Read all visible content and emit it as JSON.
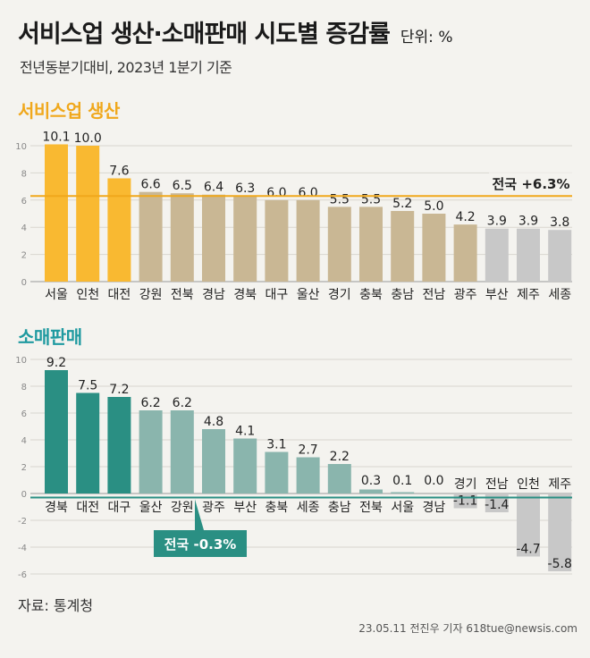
{
  "header": {
    "title": "서비스업 생산·소매판매 시도별 증감률",
    "unit": "단위: %",
    "subtitle": "전년동분기대비, 2023년 1분기 기준"
  },
  "footer": {
    "source": "자료: 통계청",
    "credit": "23.05.11 전진우 기자 618tue@newsis.com"
  },
  "colors": {
    "highlight_yellow": "#f9b931",
    "tan": "#c9b794",
    "gray": "#c8c8c8",
    "dark_teal": "#2a8f83",
    "light_teal": "#8ab5ad",
    "avg_yellow": "#f0a81c",
    "avg_teal": "#2a8f83"
  },
  "chart_data": [
    {
      "type": "bar",
      "title": "서비스업 생산",
      "categories": [
        "서울",
        "인천",
        "대전",
        "강원",
        "전북",
        "경남",
        "경북",
        "대구",
        "울산",
        "경기",
        "충북",
        "충남",
        "전남",
        "광주",
        "부산",
        "제주",
        "세종"
      ],
      "values": [
        10.1,
        10.0,
        7.6,
        6.6,
        6.5,
        6.4,
        6.3,
        6.0,
        6.0,
        5.5,
        5.5,
        5.2,
        5.0,
        4.2,
        3.9,
        3.9,
        3.8
      ],
      "value_labels": [
        "10.1",
        "10.0",
        "7.6",
        "6.6",
        "6.5",
        "6.4",
        "6.3",
        "6.0",
        "6.0",
        "5.5",
        "5.5",
        "5.2",
        "5.0",
        "4.2",
        "3.9",
        "3.9",
        "3.8"
      ],
      "bar_colors": [
        "highlight_yellow",
        "highlight_yellow",
        "highlight_yellow",
        "tan",
        "tan",
        "tan",
        "tan",
        "tan",
        "tan",
        "tan",
        "tan",
        "tan",
        "tan",
        "tan",
        "gray",
        "gray",
        "gray"
      ],
      "reference_line": {
        "label": "전국 +6.3%",
        "value": 6.3
      },
      "y_ticks": [
        "0",
        "2",
        "4",
        "6",
        "8",
        "10"
      ],
      "ylim": [
        0,
        10.5
      ],
      "grid": true
    },
    {
      "type": "bar",
      "title": "소매판매",
      "categories": [
        "경북",
        "대전",
        "대구",
        "울산",
        "강원",
        "광주",
        "부산",
        "충북",
        "세종",
        "충남",
        "전북",
        "서울",
        "경남",
        "경기",
        "전남",
        "인천",
        "제주"
      ],
      "values": [
        9.2,
        7.5,
        7.2,
        6.2,
        6.2,
        4.8,
        4.1,
        3.1,
        2.7,
        2.2,
        0.3,
        0.1,
        0.0,
        -1.1,
        -1.4,
        -4.7,
        -5.8
      ],
      "value_labels": [
        "9.2",
        "7.5",
        "7.2",
        "6.2",
        "6.2",
        "4.8",
        "4.1",
        "3.1",
        "2.7",
        "2.2",
        "0.3",
        "0.1",
        "0.0",
        "-1.1",
        "-1.4",
        "-4.7",
        "-5.8"
      ],
      "bar_colors": [
        "dark_teal",
        "dark_teal",
        "dark_teal",
        "light_teal",
        "light_teal",
        "light_teal",
        "light_teal",
        "light_teal",
        "light_teal",
        "light_teal",
        "light_teal",
        "light_teal",
        "light_teal",
        "gray",
        "gray",
        "gray",
        "gray"
      ],
      "reference_line": {
        "label": "전국 -0.3%",
        "value": -0.3
      },
      "y_ticks": [
        "-6",
        "-4",
        "-2",
        "0",
        "2",
        "4",
        "6",
        "8",
        "10"
      ],
      "ylim": [
        -6.5,
        10.5
      ],
      "grid": true
    }
  ]
}
